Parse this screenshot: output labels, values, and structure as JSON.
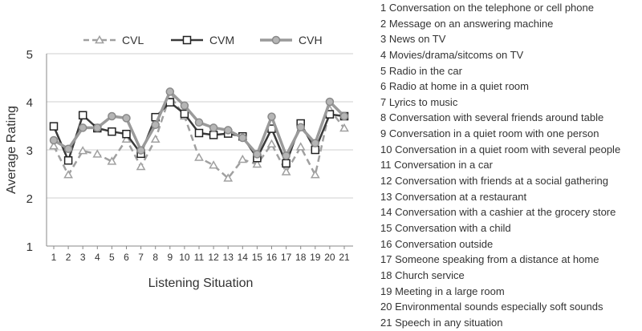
{
  "chart_data": {
    "type": "line",
    "title": "",
    "xlabel": "Listening Situation",
    "ylabel": "Average Rating",
    "ylim": [
      1,
      5
    ],
    "yticks": [
      1,
      2,
      3,
      4,
      5
    ],
    "grid": "horizontal",
    "legend_position": "top",
    "x": [
      1,
      2,
      3,
      4,
      5,
      6,
      7,
      8,
      9,
      10,
      11,
      12,
      13,
      14,
      15,
      16,
      17,
      18,
      19,
      20,
      21
    ],
    "series": [
      {
        "name": "CVL",
        "marker": "triangle",
        "dash": true,
        "color": "#a0a0a0",
        "values": [
          3.08,
          2.48,
          2.98,
          2.91,
          2.76,
          3.22,
          2.65,
          3.22,
          4.13,
          3.7,
          2.84,
          2.68,
          2.41,
          2.8,
          2.7,
          3.12,
          2.54,
          3.06,
          2.48,
          3.84,
          3.45
        ]
      },
      {
        "name": "CVM",
        "marker": "square",
        "dash": false,
        "color": "#3a3a3a",
        "values": [
          3.49,
          2.78,
          3.72,
          3.45,
          3.38,
          3.33,
          2.92,
          3.68,
          3.99,
          3.75,
          3.35,
          3.31,
          3.34,
          3.28,
          2.83,
          3.44,
          2.72,
          3.55,
          3.0,
          3.74,
          3.7
        ]
      },
      {
        "name": "CVH",
        "marker": "circle",
        "dash": false,
        "color": "#9a9a9a",
        "values": [
          3.2,
          3.02,
          3.46,
          3.46,
          3.7,
          3.66,
          2.99,
          3.52,
          4.21,
          3.92,
          3.57,
          3.46,
          3.41,
          3.25,
          2.91,
          3.69,
          2.88,
          3.47,
          3.14,
          4.0,
          3.7
        ]
      }
    ],
    "situations": [
      "1 Conversation on the telephone or cell phone",
      "2 Message on an answering machine",
      "3 News on TV",
      "4 Movies/drama/sitcoms on TV",
      "5 Radio in the car",
      "6 Radio at home in a quiet room",
      "7 Lyrics to music",
      "8 Conversation with several friends around  table",
      "9 Conversation in a quiet room with one person",
      "10 Conversation in a quiet room with several people",
      "11 Conversation in a car",
      "12 Conversation with friends at a social gathering",
      "13 Conversation at a restaurant",
      "14 Conversation with a cashier at the grocery store",
      "15 Conversation with a child",
      "16 Conversation outside",
      "17 Someone speaking from a distance at home",
      "18 Church service",
      "19 Meeting in a large room",
      "20 Environmental sounds especially soft sounds",
      "21 Speech in any situation"
    ]
  }
}
